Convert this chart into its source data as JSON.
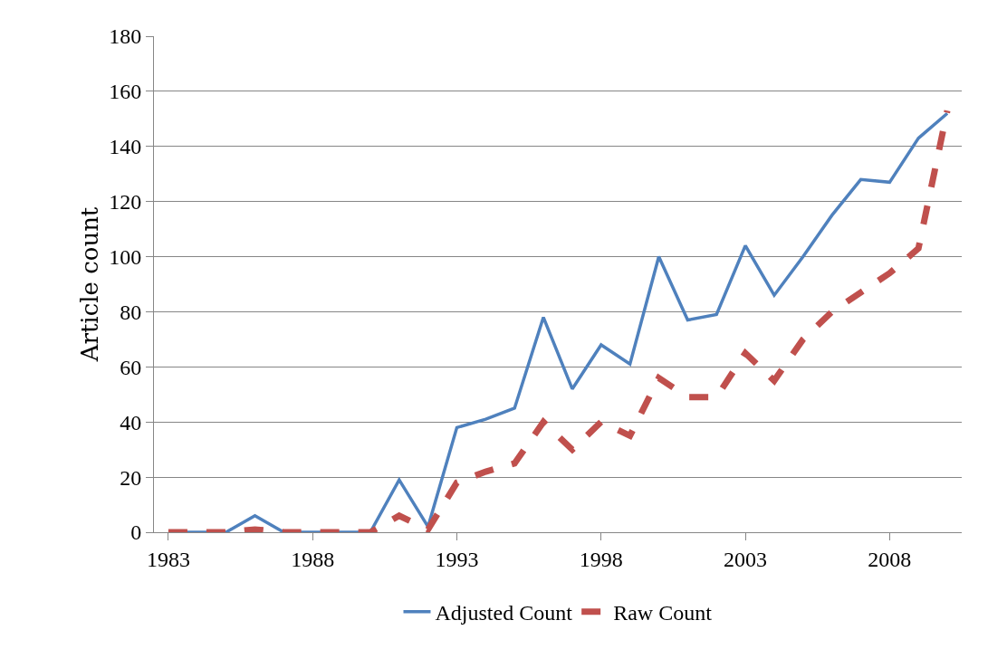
{
  "chart_data": {
    "type": "line",
    "ylabel": "Article count",
    "categories": [
      "1983",
      null,
      null,
      null,
      null,
      "1988",
      null,
      null,
      null,
      null,
      "1993",
      null,
      null,
      null,
      null,
      "1998",
      null,
      null,
      null,
      null,
      "2003",
      null,
      null,
      null,
      null,
      "2008",
      null,
      null
    ],
    "series": [
      {
        "name": "Adjusted Count",
        "color": "#4f81bd",
        "line_style": "solid",
        "values": [
          0,
          0,
          0,
          6,
          0,
          0,
          0,
          0,
          19,
          2,
          38,
          41,
          45,
          78,
          52,
          68,
          61,
          100,
          77,
          79,
          104,
          86,
          100,
          115,
          128,
          127,
          143,
          152
        ]
      },
      {
        "name": "Raw Count",
        "color": "#c0504d",
        "line_style": "dashed",
        "values": [
          0,
          0,
          0,
          1,
          0,
          0,
          0,
          0,
          6,
          1,
          18,
          22,
          25,
          40,
          30,
          40,
          35,
          56,
          49,
          49,
          65,
          55,
          70,
          80,
          87,
          94,
          103,
          153
        ]
      }
    ],
    "ylim": [
      0,
      180
    ],
    "yticks": [
      0,
      20,
      40,
      60,
      80,
      100,
      120,
      140,
      160,
      180
    ],
    "grid": "y",
    "legend": "bottom",
    "marker": "none"
  }
}
